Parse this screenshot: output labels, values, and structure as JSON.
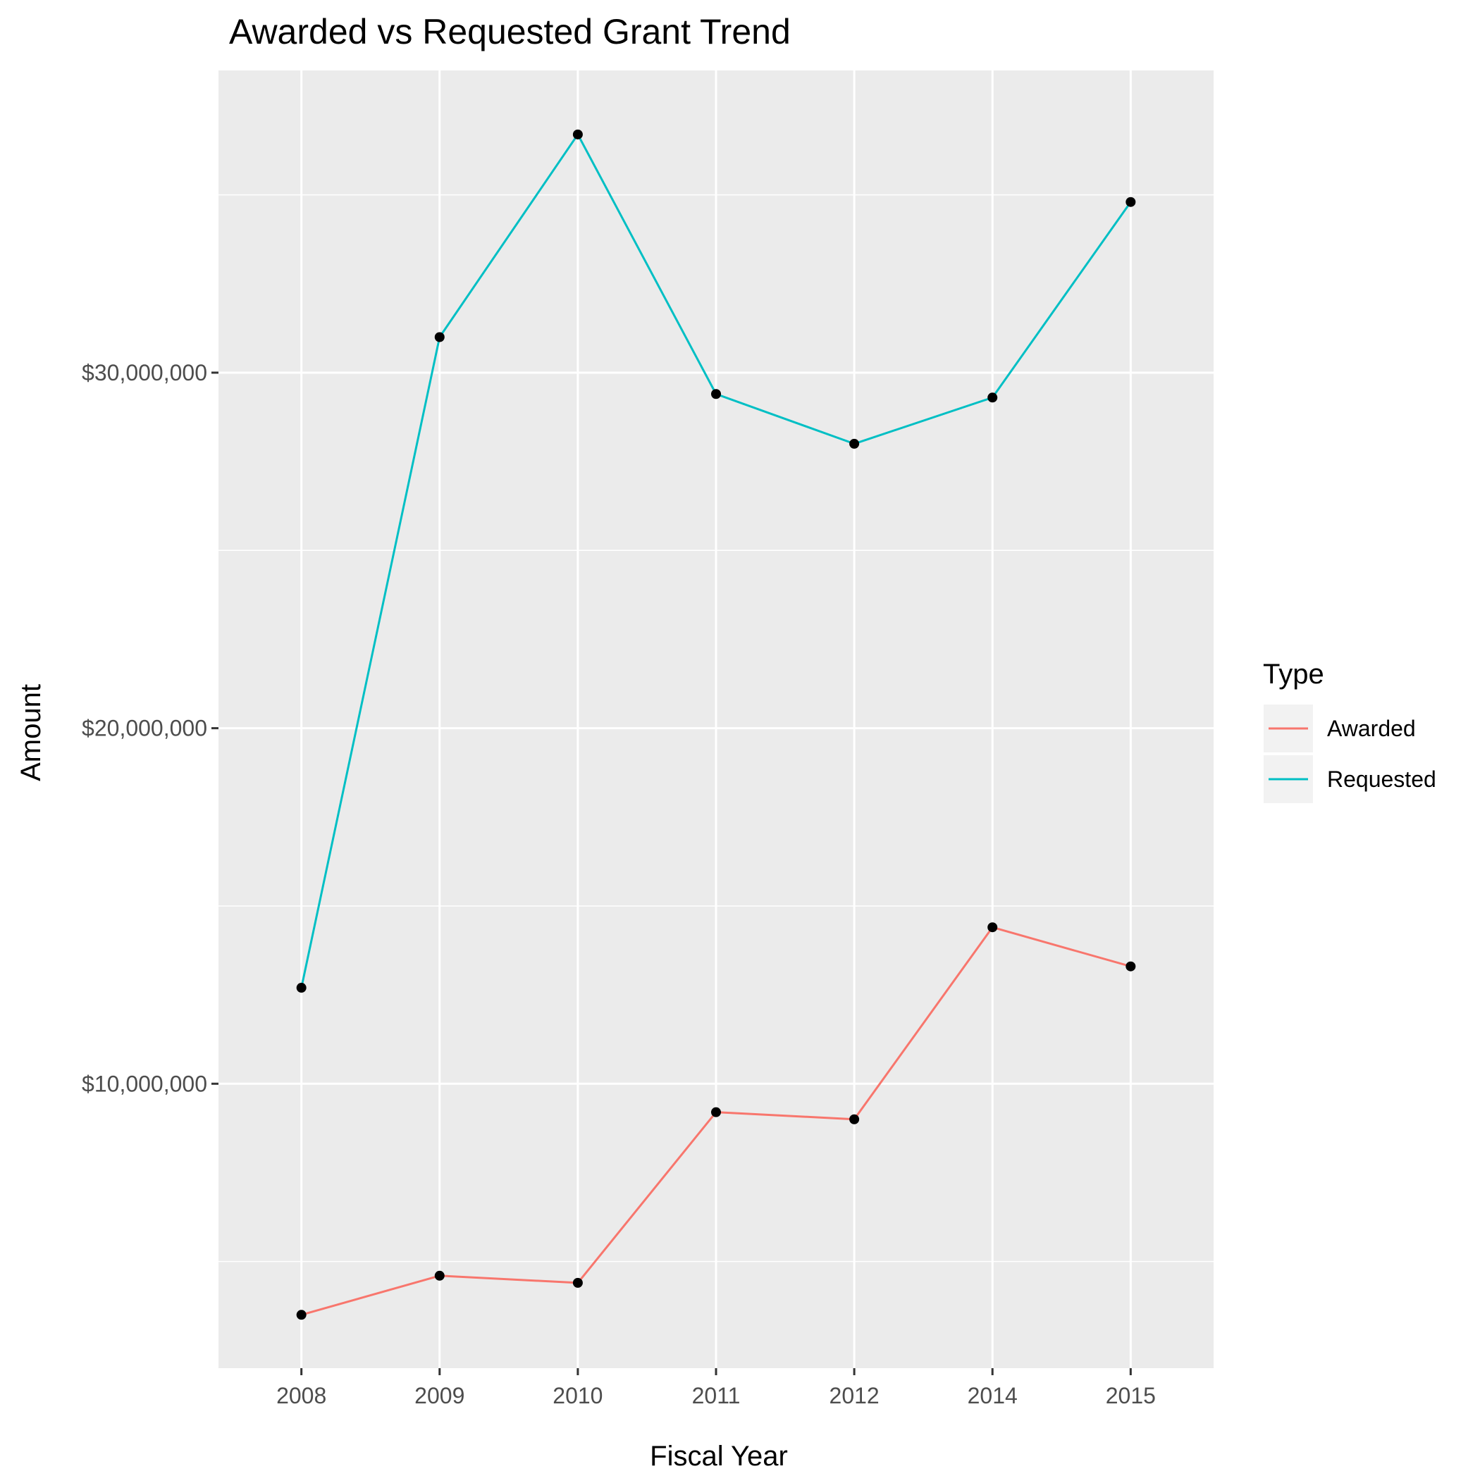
{
  "chart_data": {
    "type": "line",
    "title": "Awarded vs Requested Grant Trend",
    "xlabel": "Fiscal Year",
    "ylabel": "Amount",
    "categories": [
      "2008",
      "2009",
      "2010",
      "2011",
      "2012",
      "2014",
      "2015"
    ],
    "ylim": [
      2000000,
      38500000
    ],
    "y_ticks": [
      10000000,
      20000000,
      30000000
    ],
    "y_tick_labels": [
      "$10,000,000",
      "$20,000,000",
      "$30,000,000"
    ],
    "grid": true,
    "legend": {
      "title": "Type",
      "position": "right"
    },
    "series": [
      {
        "name": "Awarded",
        "color": "#F8766D",
        "values": [
          3500000,
          4600000,
          4400000,
          9200000,
          9000000,
          14400000,
          13300000
        ]
      },
      {
        "name": "Requested",
        "color": "#00BFC4",
        "values": [
          12700000,
          31000000,
          36700000,
          29400000,
          28000000,
          29300000,
          34800000
        ]
      }
    ],
    "point_color": "#000000",
    "panel_background": "#EBEBEB",
    "grid_color": "#FFFFFF"
  }
}
